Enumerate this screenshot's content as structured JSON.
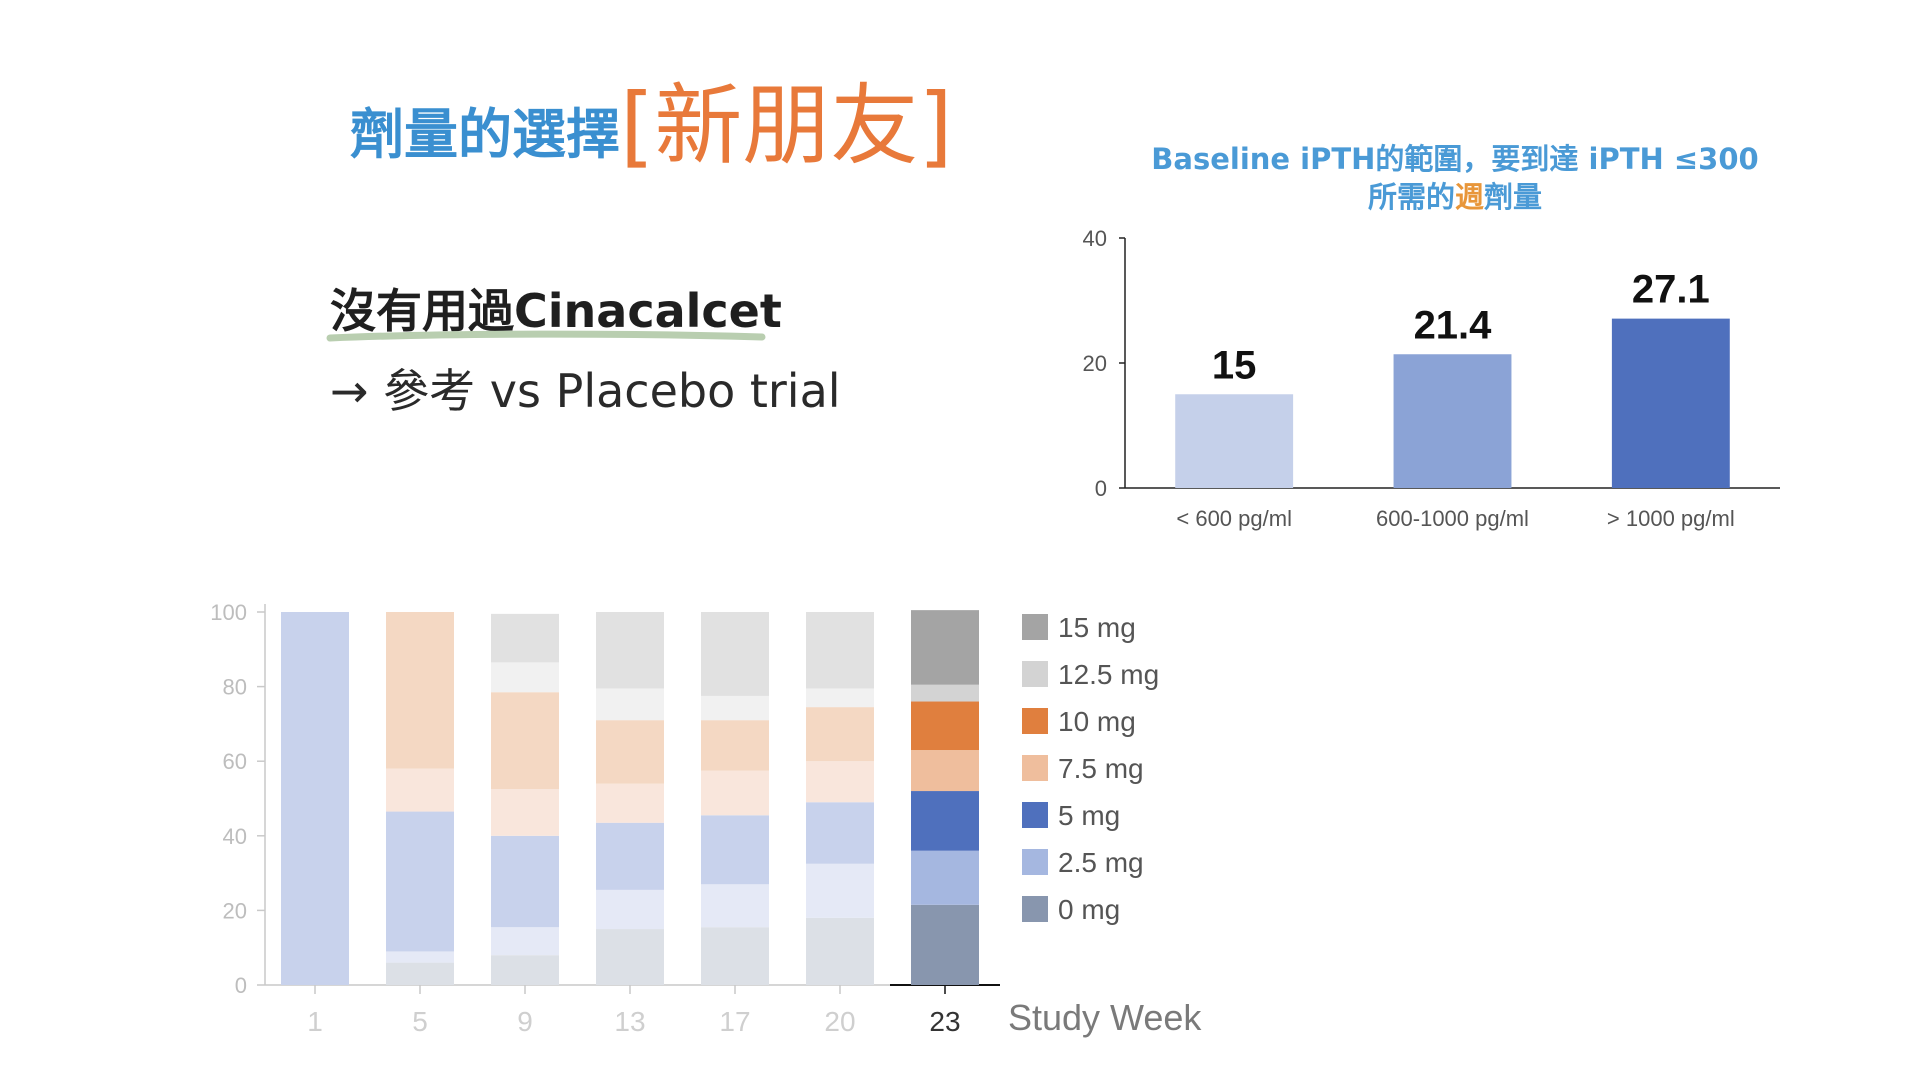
{
  "slide": {
    "title_main": "劑量的選擇",
    "title_bracket": "[新朋友]",
    "bullet_1": "沒有用過Cinacalcet",
    "bullet_2": "→ 參考 vs Placebo trial"
  },
  "right_chart_title": {
    "line1": "Baseline iPTH的範圍，要到達 iPTH ≤300",
    "line2_pre": "所需的",
    "line2_highlight": "週",
    "line2_post": "劑量"
  },
  "colors": {
    "title_blue": "#3a8fd0",
    "title_orange": "#e8793a",
    "chart_title": "#4a9ad6",
    "highlight": "#e8963a",
    "underline_green": "#b9ceb0"
  },
  "chart_data": [
    {
      "type": "bar",
      "title": "Baseline iPTH的範圍，要到達 iPTH ≤300 所需的週劑量",
      "categories": [
        "< 600 pg/ml",
        "600-1000 pg/ml",
        "> 1000 pg/ml"
      ],
      "values": [
        15,
        21.4,
        27.1
      ],
      "value_labels": [
        "15",
        "21.4",
        "27.1"
      ],
      "colors": [
        "#c5d0ea",
        "#8ba3d6",
        "#4f70bd"
      ],
      "ylim": [
        0,
        40
      ],
      "yticks": [
        0,
        20,
        40
      ],
      "grid": false,
      "legend": "none"
    },
    {
      "type": "bar",
      "stacked": true,
      "xlabel": "Study Week",
      "categories": [
        "1",
        "5",
        "9",
        "13",
        "17",
        "20",
        "23"
      ],
      "highlighted_category": "23",
      "ylim": [
        0,
        100
      ],
      "yticks": [
        0,
        20,
        40,
        60,
        80,
        100
      ],
      "legend": "right",
      "series": [
        {
          "name": "0 mg",
          "color": "#8896ae",
          "faded_color": "#dce0e6",
          "values": [
            0,
            6,
            8,
            15,
            15.5,
            18,
            21.5
          ]
        },
        {
          "name": "2.5 mg",
          "color": "#a5b7e0",
          "faded_color": "#e5e9f6",
          "values": [
            0,
            3,
            7.5,
            10.5,
            11.5,
            14.5,
            14.5
          ]
        },
        {
          "name": "5 mg",
          "color": "#4f70bd",
          "faded_color": "#c8d2ec",
          "values": [
            100,
            37.5,
            24.5,
            18,
            18.5,
            16.5,
            16
          ]
        },
        {
          "name": "7.5 mg",
          "color": "#efbe9d",
          "faded_color": "#f9e6dc",
          "values": [
            0,
            11.5,
            12.5,
            10.5,
            12,
            11,
            11
          ]
        },
        {
          "name": "10 mg",
          "color": "#e07f3e",
          "faded_color": "#f4d8c3",
          "values": [
            0,
            42,
            26,
            17,
            13.5,
            14.5,
            13
          ]
        },
        {
          "name": "12.5 mg",
          "color": "#d3d3d3",
          "faded_color": "#f1f1f1",
          "values": [
            0,
            0,
            8,
            8.5,
            6.5,
            5,
            4.5
          ]
        },
        {
          "name": "15 mg",
          "color": "#a4a4a4",
          "faded_color": "#e1e1e1",
          "values": [
            0,
            0,
            13,
            20.5,
            22.5,
            20.5,
            20
          ]
        }
      ],
      "legend_order": [
        "15 mg",
        "12.5 mg",
        "10 mg",
        "7.5 mg",
        "5 mg",
        "2.5 mg",
        "0 mg"
      ]
    }
  ]
}
